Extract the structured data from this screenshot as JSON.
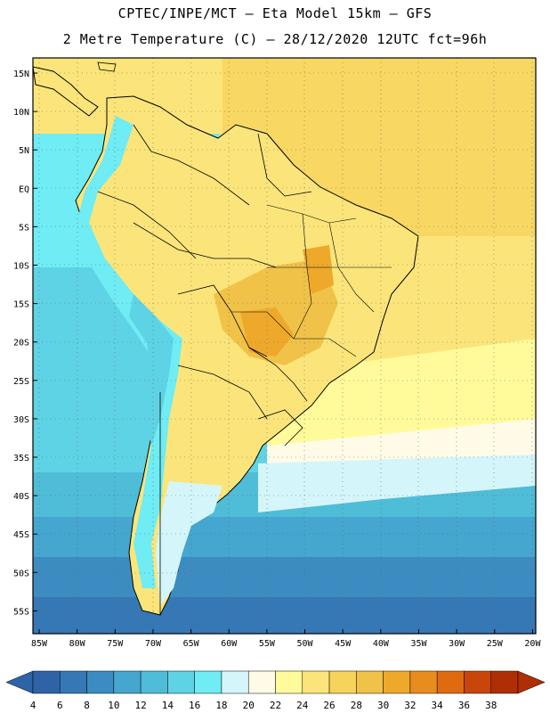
{
  "title_line1": "CPTEC/INPE/MCT –  Eta Model 15km – GFS",
  "title_line2": "2 Metre Temperature (C) – 28/12/2020 12UTC fct=96h",
  "lat_labels": [
    "15N",
    "10N",
    "5N",
    "EQ",
    "5S",
    "10S",
    "15S",
    "20S",
    "25S",
    "30S",
    "35S",
    "40S",
    "45S",
    "50S",
    "55S"
  ],
  "lon_labels": [
    "85W",
    "80W",
    "75W",
    "70W",
    "65W",
    "60W",
    "55W",
    "50W",
    "45W",
    "40W",
    "35W",
    "30W",
    "25W",
    "20W"
  ],
  "colorbar": {
    "labels": [
      "4",
      "6",
      "8",
      "10",
      "12",
      "14",
      "16",
      "18",
      "20",
      "22",
      "24",
      "26",
      "28",
      "30",
      "32",
      "34",
      "36",
      "38"
    ],
    "colors": [
      "#2e63a8",
      "#3578b5",
      "#3c8cc2",
      "#45a6cf",
      "#4fbcd8",
      "#5fd3e6",
      "#6fecf4",
      "#d4f6fb",
      "#fffbe6",
      "#fffb9a",
      "#fbe57a",
      "#f6d35a",
      "#f0c248",
      "#eea92a",
      "#e88c1d",
      "#e06a10",
      "#c9460a",
      "#b02e05"
    ],
    "left_cap_color": "#2e63a8",
    "right_cap_color": "#b02e05"
  }
}
